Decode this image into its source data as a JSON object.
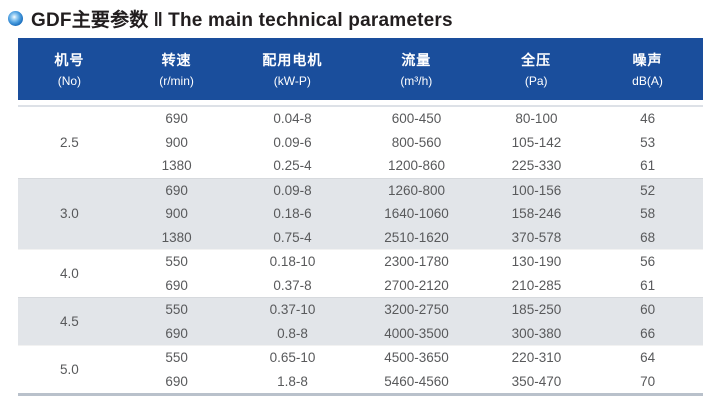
{
  "title": {
    "zh": "GDF主要参数",
    "divider": "‖",
    "en": "The main technical parameters"
  },
  "colors": {
    "header_bg": "#1a4e9c",
    "shaded_row": "#e2e5e9",
    "bottom_border": "#b9c1cb",
    "body_text": "#58595b",
    "bullet_blue": "#0f63b5"
  },
  "table": {
    "columns": [
      {
        "id": "no",
        "zh": "机号",
        "sub": "(No)"
      },
      {
        "id": "speed",
        "zh": "转速",
        "sub": "(r/min)"
      },
      {
        "id": "motor",
        "zh": "配用电机",
        "sub": "(kW-P)"
      },
      {
        "id": "flow",
        "zh": "流量",
        "sub": "(m³/h)"
      },
      {
        "id": "pressure",
        "zh": "全压",
        "sub": "(Pa)"
      },
      {
        "id": "noise",
        "zh": "噪声",
        "sub": "dB(A)"
      }
    ],
    "groups": [
      {
        "no": "2.5",
        "shaded": false,
        "rows": [
          [
            "690",
            "0.04-8",
            "600-450",
            "80-100",
            "46"
          ],
          [
            "900",
            "0.09-6",
            "800-560",
            "105-142",
            "53"
          ],
          [
            "1380",
            "0.25-4",
            "1200-860",
            "225-330",
            "61"
          ]
        ]
      },
      {
        "no": "3.0",
        "shaded": true,
        "rows": [
          [
            "690",
            "0.09-8",
            "1260-800",
            "100-156",
            "52"
          ],
          [
            "900",
            "0.18-6",
            "1640-1060",
            "158-246",
            "58"
          ],
          [
            "1380",
            "0.75-4",
            "2510-1620",
            "370-578",
            "68"
          ]
        ]
      },
      {
        "no": "4.0",
        "shaded": false,
        "rows": [
          [
            "550",
            "0.18-10",
            "2300-1780",
            "130-190",
            "56"
          ],
          [
            "690",
            "0.37-8",
            "2700-2120",
            "210-285",
            "61"
          ]
        ]
      },
      {
        "no": "4.5",
        "shaded": true,
        "rows": [
          [
            "550",
            "0.37-10",
            "3200-2750",
            "185-250",
            "60"
          ],
          [
            "690",
            "0.8-8",
            "4000-3500",
            "300-380",
            "66"
          ]
        ]
      },
      {
        "no": "5.0",
        "shaded": false,
        "rows": [
          [
            "550",
            "0.65-10",
            "4500-3650",
            "220-310",
            "64"
          ],
          [
            "690",
            "1.8-8",
            "5460-4560",
            "350-470",
            "70"
          ]
        ]
      }
    ]
  }
}
